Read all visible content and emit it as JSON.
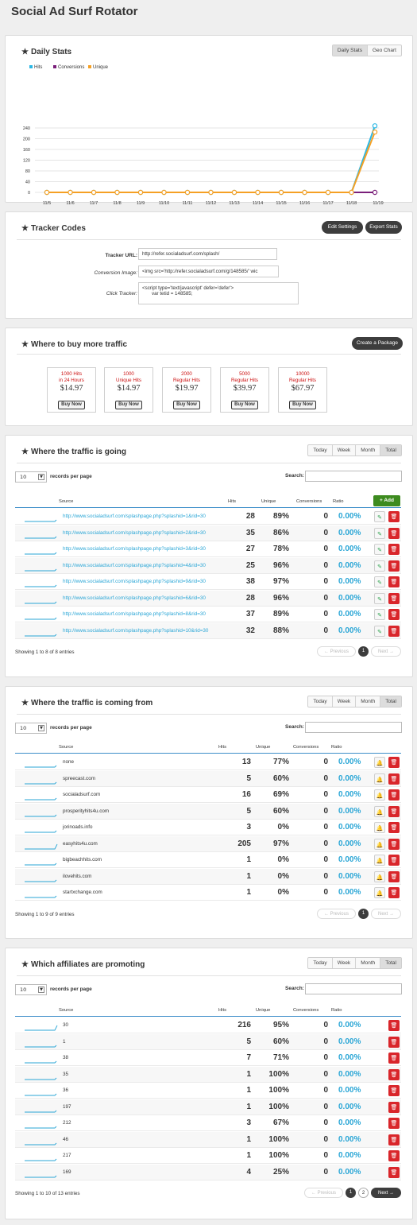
{
  "page": {
    "title": "Social Ad Surf Rotator"
  },
  "daily_stats": {
    "title": "Daily Stats",
    "tabs": [
      "Daily Stats",
      "Geo Chart"
    ],
    "colors": {
      "hits": "#2ab7e4",
      "conversions": "#7a1f7a",
      "unique": "#f5a024"
    },
    "chart_data": {
      "type": "line",
      "categories": [
        "11/5",
        "11/6",
        "11/7",
        "11/8",
        "11/9",
        "11/10",
        "11/11",
        "11/12",
        "11/13",
        "11/14",
        "11/15",
        "11/16",
        "11/17",
        "11/18",
        "11/19"
      ],
      "series": [
        {
          "name": "Hits",
          "values": [
            0,
            0,
            0,
            0,
            0,
            0,
            0,
            0,
            0,
            0,
            0,
            0,
            0,
            0,
            248
          ]
        },
        {
          "name": "Conversions",
          "values": [
            0,
            0,
            0,
            0,
            0,
            0,
            0,
            0,
            0,
            0,
            0,
            0,
            0,
            0,
            0
          ]
        },
        {
          "name": "Unique",
          "values": [
            0,
            0,
            0,
            0,
            0,
            0,
            0,
            0,
            0,
            0,
            0,
            0,
            0,
            0,
            225
          ]
        }
      ],
      "yticks": [
        "240",
        "200",
        "160",
        "120",
        "80",
        "40",
        "0"
      ],
      "ylim": [
        0,
        260
      ],
      "legend_position": "top-left",
      "grid": true
    }
  },
  "tracker": {
    "title": "Tracker Codes",
    "edit_label": "Edit Settings",
    "export_label": "Export Stats",
    "url_label": "Tracker URL:",
    "url_value": "http://refer.socialadsurf.com/splash/",
    "conv_label": "Conversion Image:",
    "conv_value": "<img src='http://refer.socialadsurf.com/g/148585/' wic",
    "click_label": "Click Tracker:",
    "click_line1": "<script type='text/javascript' defer='defer'>",
    "click_line2": "var tetid = 148585;"
  },
  "buy": {
    "title": "Where to buy more traffic",
    "create_label": "Create a Package",
    "packages": [
      {
        "l1": "1000 Hits",
        "l2": "in 24 Hours",
        "price": "$14.97",
        "btn": "Buy Now"
      },
      {
        "l1": "1000",
        "l2": "Unique Hits",
        "price": "$14.97",
        "btn": "Buy Now"
      },
      {
        "l1": "2000",
        "l2": "Regular Hits",
        "price": "$19.97",
        "btn": "Buy Now"
      },
      {
        "l1": "5000",
        "l2": "Regular Hits",
        "price": "$39.97",
        "btn": "Buy Now"
      },
      {
        "l1": "10000",
        "l2": "Regular Hits",
        "price": "$67.97",
        "btn": "Buy Now"
      }
    ]
  },
  "going": {
    "title": "Where the traffic is going",
    "ranges": [
      "Today",
      "Week",
      "Month",
      "Total"
    ],
    "length_value": "10",
    "length_label": "records per page",
    "search_label": "Search:",
    "add_label": "+ Add",
    "headers": {
      "source": "Source",
      "hits": "Hits",
      "unique": "Unique",
      "conversions": "Conversions",
      "ratio": "Ratio"
    },
    "rows": [
      {
        "source": "http://www.socialadsurf.com/splashpage.php?splashid=1&rid=30",
        "hits": "28",
        "unique": "89%",
        "conv": "0",
        "ratio": "0.00%"
      },
      {
        "source": "http://www.socialadsurf.com/splashpage.php?splashid=2&rid=30",
        "hits": "35",
        "unique": "86%",
        "conv": "0",
        "ratio": "0.00%"
      },
      {
        "source": "http://www.socialadsurf.com/splashpage.php?splashid=3&rid=30",
        "hits": "27",
        "unique": "78%",
        "conv": "0",
        "ratio": "0.00%"
      },
      {
        "source": "http://www.socialadsurf.com/splashpage.php?splashid=4&rid=30",
        "hits": "25",
        "unique": "96%",
        "conv": "0",
        "ratio": "0.00%"
      },
      {
        "source": "http://www.socialadsurf.com/splashpage.php?splashid=9&rid=30",
        "hits": "38",
        "unique": "97%",
        "conv": "0",
        "ratio": "0.00%"
      },
      {
        "source": "http://www.socialadsurf.com/splashpage.php?splashid=6&rid=30",
        "hits": "28",
        "unique": "96%",
        "conv": "0",
        "ratio": "0.00%"
      },
      {
        "source": "http://www.socialadsurf.com/splashpage.php?splashid=8&rid=30",
        "hits": "37",
        "unique": "89%",
        "conv": "0",
        "ratio": "0.00%"
      },
      {
        "source": "http://www.socialadsurf.com/splashpage.php?splashid=10&rid=30",
        "hits": "32",
        "unique": "88%",
        "conv": "0",
        "ratio": "0.00%"
      }
    ],
    "showing": "Showing 1 to 8 of 8 entries",
    "prev": "← Previous",
    "next": "Next →",
    "pages": [
      "1"
    ]
  },
  "coming": {
    "title": "Where the traffic is coming from",
    "ranges": [
      "Today",
      "Week",
      "Month",
      "Total"
    ],
    "length_value": "10",
    "length_label": "records per page",
    "search_label": "Search:",
    "headers": {
      "source": "Source",
      "hits": "Hits",
      "unique": "Unique",
      "conversions": "Conversions",
      "ratio": "Ratio"
    },
    "rows": [
      {
        "source": "none",
        "hits": "13",
        "unique": "77%",
        "conv": "0",
        "ratio": "0.00%"
      },
      {
        "source": "spreecast.com",
        "hits": "5",
        "unique": "60%",
        "conv": "0",
        "ratio": "0.00%"
      },
      {
        "source": "socialadsurf.com",
        "hits": "16",
        "unique": "69%",
        "conv": "0",
        "ratio": "0.00%"
      },
      {
        "source": "prosperityhits4u.com",
        "hits": "5",
        "unique": "60%",
        "conv": "0",
        "ratio": "0.00%"
      },
      {
        "source": "jorinoads.info",
        "hits": "3",
        "unique": "0%",
        "conv": "0",
        "ratio": "0.00%"
      },
      {
        "source": "easyhits4u.com",
        "hits": "205",
        "unique": "97%",
        "conv": "0",
        "ratio": "0.00%"
      },
      {
        "source": "bigbeachhits.com",
        "hits": "1",
        "unique": "0%",
        "conv": "0",
        "ratio": "0.00%"
      },
      {
        "source": "ilovehits.com",
        "hits": "1",
        "unique": "0%",
        "conv": "0",
        "ratio": "0.00%"
      },
      {
        "source": "startxchange.com",
        "hits": "1",
        "unique": "0%",
        "conv": "0",
        "ratio": "0.00%"
      }
    ],
    "showing": "Showing 1 to 9 of 9 entries",
    "prev": "← Previous",
    "next": "Next →",
    "pages": [
      "1"
    ]
  },
  "affiliates": {
    "title": "Which affiliates are promoting",
    "ranges": [
      "Today",
      "Week",
      "Month",
      "Total"
    ],
    "length_value": "10",
    "length_label": "records per page",
    "search_label": "Search:",
    "headers": {
      "source": "Source",
      "hits": "Hits",
      "unique": "Unique",
      "conversions": "Conversions",
      "ratio": "Ratio"
    },
    "rows": [
      {
        "source": "30",
        "hits": "216",
        "unique": "95%",
        "conv": "0",
        "ratio": "0.00%"
      },
      {
        "source": "1",
        "hits": "5",
        "unique": "60%",
        "conv": "0",
        "ratio": "0.00%"
      },
      {
        "source": "38",
        "hits": "7",
        "unique": "71%",
        "conv": "0",
        "ratio": "0.00%"
      },
      {
        "source": "35",
        "hits": "1",
        "unique": "100%",
        "conv": "0",
        "ratio": "0.00%"
      },
      {
        "source": "36",
        "hits": "1",
        "unique": "100%",
        "conv": "0",
        "ratio": "0.00%"
      },
      {
        "source": "197",
        "hits": "1",
        "unique": "100%",
        "conv": "0",
        "ratio": "0.00%"
      },
      {
        "source": "212",
        "hits": "3",
        "unique": "67%",
        "conv": "0",
        "ratio": "0.00%"
      },
      {
        "source": "46",
        "hits": "1",
        "unique": "100%",
        "conv": "0",
        "ratio": "0.00%"
      },
      {
        "source": "217",
        "hits": "1",
        "unique": "100%",
        "conv": "0",
        "ratio": "0.00%"
      },
      {
        "source": "169",
        "hits": "4",
        "unique": "25%",
        "conv": "0",
        "ratio": "0.00%"
      }
    ],
    "showing": "Showing 1 to 10 of 13 entries",
    "prev": "← Previous",
    "next": "Next →",
    "pages": [
      "1",
      "2"
    ]
  }
}
